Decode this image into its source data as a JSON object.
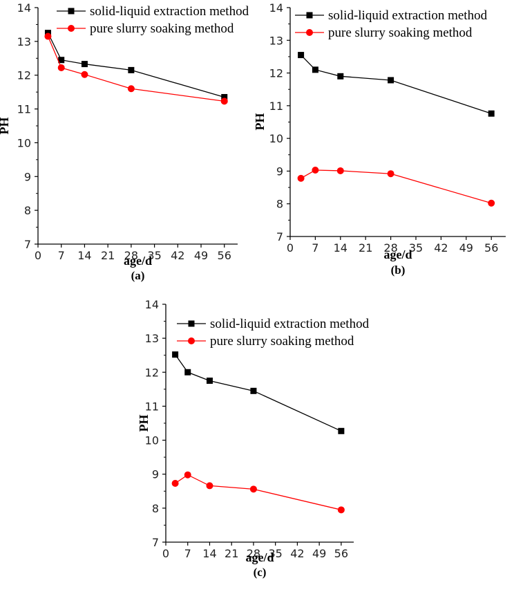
{
  "chart_data": [
    {
      "type": "line",
      "panel_label": "(a)",
      "xlabel": "age/d",
      "ylabel": "PH",
      "xlim": [
        0,
        60
      ],
      "ylim": [
        7,
        14
      ],
      "xticks": [
        0,
        7,
        14,
        21,
        28,
        35,
        42,
        49,
        56
      ],
      "yticks": [
        7,
        8,
        9,
        10,
        11,
        12,
        13,
        14
      ],
      "legend_position": "top",
      "series": [
        {
          "name": "solid-liquid extraction method",
          "color": "#000000",
          "marker": "square",
          "x": [
            3,
            7,
            14,
            28,
            56
          ],
          "y": [
            13.25,
            12.45,
            12.33,
            12.15,
            11.35
          ]
        },
        {
          "name": "pure slurry soaking method",
          "color": "#ff0000",
          "marker": "circle",
          "x": [
            3,
            7,
            14,
            28,
            56
          ],
          "y": [
            13.15,
            12.22,
            12.02,
            11.6,
            11.23
          ]
        }
      ]
    },
    {
      "type": "line",
      "panel_label": "(b)",
      "xlabel": "age/d",
      "ylabel": "PH",
      "xlim": [
        0,
        60
      ],
      "ylim": [
        7,
        14
      ],
      "xticks": [
        0,
        7,
        14,
        21,
        28,
        35,
        42,
        49,
        56
      ],
      "yticks": [
        7,
        8,
        9,
        10,
        11,
        12,
        13,
        14
      ],
      "legend_position": "top",
      "series": [
        {
          "name": "solid-liquid extraction method",
          "color": "#000000",
          "marker": "square",
          "x": [
            3,
            7,
            14,
            28,
            56
          ],
          "y": [
            12.55,
            12.1,
            11.9,
            11.78,
            10.76
          ]
        },
        {
          "name": "pure slurry soaking method",
          "color": "#ff0000",
          "marker": "circle",
          "x": [
            3,
            7,
            14,
            28,
            56
          ],
          "y": [
            8.78,
            9.03,
            9.01,
            8.92,
            8.02
          ]
        }
      ]
    },
    {
      "type": "line",
      "panel_label": "(c)",
      "xlabel": "age/d",
      "ylabel": "PH",
      "xlim": [
        0,
        60
      ],
      "ylim": [
        7,
        14
      ],
      "xticks": [
        0,
        7,
        14,
        21,
        28,
        35,
        42,
        49,
        56
      ],
      "yticks": [
        7,
        8,
        9,
        10,
        11,
        12,
        13,
        14
      ],
      "legend_position": "top",
      "series": [
        {
          "name": "solid-liquid extraction method",
          "color": "#000000",
          "marker": "square",
          "x": [
            3,
            7,
            14,
            28,
            56
          ],
          "y": [
            12.52,
            12.0,
            11.75,
            11.45,
            10.27
          ]
        },
        {
          "name": "pure slurry soaking method",
          "color": "#ff0000",
          "marker": "circle",
          "x": [
            3,
            7,
            14,
            28,
            56
          ],
          "y": [
            8.73,
            8.98,
            8.66,
            8.56,
            7.95
          ]
        }
      ]
    }
  ]
}
